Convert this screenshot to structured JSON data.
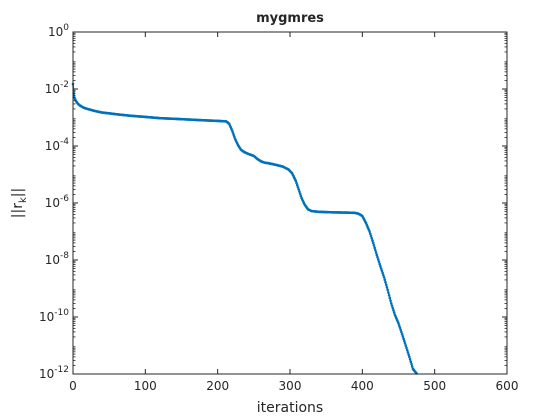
{
  "chart_data": {
    "type": "line",
    "title": "mygmres",
    "xlabel": "iterations",
    "ylabel": {
      "base": "||r",
      "subscript": "k",
      "suffix": "||"
    },
    "xlim": [
      0,
      600
    ],
    "ylim": [
      1e-12,
      1
    ],
    "y_scale": "log",
    "grid": false,
    "legend": "none",
    "x_ticks": [
      0,
      100,
      200,
      300,
      400,
      500,
      600
    ],
    "x_tick_labels": [
      "0",
      "100",
      "200",
      "300",
      "400",
      "500",
      "600"
    ],
    "y_ticks": [
      {
        "base": "10",
        "exp": "-12",
        "value": 1e-12
      },
      {
        "base": "10",
        "exp": "-10",
        "value": 1e-10
      },
      {
        "base": "10",
        "exp": "-8",
        "value": 1e-08
      },
      {
        "base": "10",
        "exp": "-6",
        "value": 1e-06
      },
      {
        "base": "10",
        "exp": "-4",
        "value": 0.0001
      },
      {
        "base": "10",
        "exp": "-2",
        "value": 0.01
      },
      {
        "base": "10",
        "exp": "0",
        "value": 1
      }
    ],
    "series": [
      {
        "color": "#0072BD",
        "marker": "dot",
        "points": [
          [
            0,
            0.015
          ],
          [
            1,
            0.007
          ],
          [
            2,
            0.005
          ],
          [
            4,
            0.0038
          ],
          [
            7,
            0.003
          ],
          [
            10,
            0.0026
          ],
          [
            15,
            0.0022
          ],
          [
            20,
            0.002
          ],
          [
            30,
            0.0017
          ],
          [
            40,
            0.0015
          ],
          [
            50,
            0.0014
          ],
          [
            60,
            0.0013
          ],
          [
            80,
            0.00115
          ],
          [
            100,
            0.00105
          ],
          [
            120,
            0.00095
          ],
          [
            140,
            0.0009
          ],
          [
            160,
            0.00085
          ],
          [
            180,
            0.0008
          ],
          [
            200,
            0.00076
          ],
          [
            212,
            0.00073
          ],
          [
            216,
            0.0006
          ],
          [
            220,
            0.00035
          ],
          [
            224,
            0.00018
          ],
          [
            228,
            0.00011
          ],
          [
            232,
            7.5e-05
          ],
          [
            236,
            6.3e-05
          ],
          [
            240,
            5.6e-05
          ],
          [
            245,
            5e-05
          ],
          [
            250,
            4.5e-05
          ],
          [
            255,
            3.5e-05
          ],
          [
            260,
            2.9e-05
          ],
          [
            265,
            2.6e-05
          ],
          [
            270,
            2.5e-05
          ],
          [
            280,
            2.2e-05
          ],
          [
            290,
            1.9e-05
          ],
          [
            298,
            1.5e-05
          ],
          [
            303,
            1.1e-05
          ],
          [
            308,
            6e-06
          ],
          [
            312,
            3e-06
          ],
          [
            316,
            1.5e-06
          ],
          [
            320,
            9e-07
          ],
          [
            325,
            6e-07
          ],
          [
            330,
            5.2e-07
          ],
          [
            340,
            4.9e-07
          ],
          [
            360,
            4.7e-07
          ],
          [
            380,
            4.6e-07
          ],
          [
            390,
            4.5e-07
          ],
          [
            395,
            4.2e-07
          ],
          [
            400,
            3.5e-07
          ],
          [
            405,
            2e-07
          ],
          [
            410,
            1e-07
          ],
          [
            415,
            4e-08
          ],
          [
            420,
            1.5e-08
          ],
          [
            425,
            6e-09
          ],
          [
            430,
            2.5e-09
          ],
          [
            435,
            9e-10
          ],
          [
            440,
            3e-10
          ],
          [
            445,
            1.2e-10
          ],
          [
            450,
            6e-11
          ],
          [
            455,
            2.5e-11
          ],
          [
            460,
            1e-11
          ],
          [
            465,
            4e-12
          ],
          [
            470,
            1.5e-12
          ],
          [
            475,
            1.05e-12
          ]
        ]
      }
    ]
  }
}
